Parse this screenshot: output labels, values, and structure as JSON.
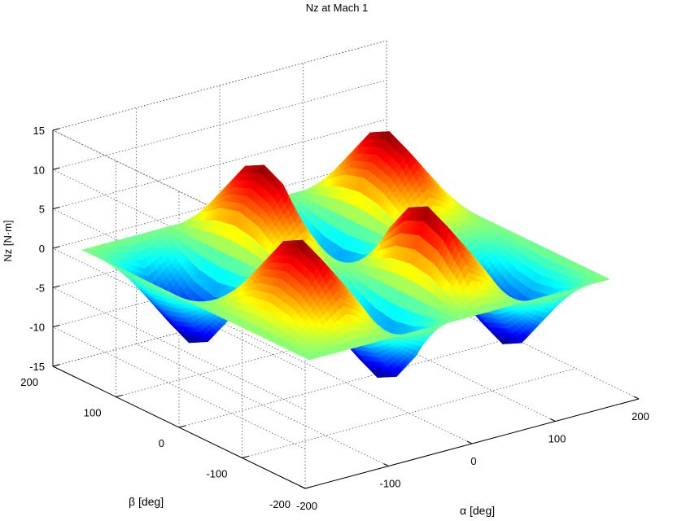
{
  "chart_data": {
    "type": "surface3d",
    "title": "Nz at Mach 1",
    "xlabel": "α [deg]",
    "ylabel": "β [deg]",
    "zlabel": "Nz [N·m]",
    "xlim": [
      -200,
      200
    ],
    "ylim": [
      -200,
      200
    ],
    "zlim": [
      -15,
      15
    ],
    "xticks": [
      "-200",
      "-100",
      "0",
      "100",
      "200"
    ],
    "yticks": [
      "-200",
      "-100",
      "0",
      "100",
      "200"
    ],
    "zticks": [
      "-15",
      "-10",
      "-5",
      "0",
      "5",
      "10",
      "15"
    ],
    "grid": true,
    "colormap": "jet",
    "x": [
      -180,
      -150,
      -120,
      -90,
      -60,
      -30,
      0,
      30,
      60,
      90,
      120,
      150,
      180
    ],
    "y": [
      -180,
      -150,
      -120,
      -90,
      -60,
      -30,
      0,
      30,
      60,
      90,
      120,
      150,
      180
    ],
    "z_rows_by_y": [
      [
        0,
        0,
        0,
        0,
        0,
        0,
        0,
        0,
        0,
        0,
        0,
        0,
        0
      ],
      [
        0,
        2.5,
        5,
        2.5,
        -2.5,
        -5,
        0,
        5,
        2.5,
        -2.5,
        -5,
        -2.5,
        0
      ],
      [
        0,
        4.3,
        8.7,
        4.3,
        -4.3,
        -8.7,
        0,
        8.7,
        4.3,
        -4.3,
        -8.7,
        -4.3,
        0
      ],
      [
        0,
        5,
        10,
        5,
        -5,
        -10,
        0,
        10,
        5,
        -5,
        -10,
        -5,
        0
      ],
      [
        0,
        4.3,
        8.7,
        4.3,
        -4.3,
        -8.7,
        0,
        8.7,
        4.3,
        -4.3,
        -8.7,
        -4.3,
        0
      ],
      [
        0,
        2.5,
        5,
        2.5,
        -2.5,
        -5,
        0,
        5,
        2.5,
        -2.5,
        -5,
        -2.5,
        0
      ],
      [
        0,
        0,
        0,
        0,
        0,
        0,
        0,
        0,
        0,
        0,
        0,
        0,
        0
      ],
      [
        0,
        -2.5,
        -5,
        -2.5,
        2.5,
        5,
        0,
        -5,
        -2.5,
        2.5,
        5,
        2.5,
        0
      ],
      [
        0,
        -4.3,
        -8.7,
        -4.3,
        4.3,
        8.7,
        0,
        -8.7,
        -4.3,
        4.3,
        8.7,
        4.3,
        0
      ],
      [
        0,
        -5,
        -10,
        -5,
        5,
        10,
        0,
        -10,
        -5,
        5,
        10,
        5,
        0
      ],
      [
        0,
        -4.3,
        -8.7,
        -4.3,
        4.3,
        8.7,
        0,
        -8.7,
        -4.3,
        4.3,
        8.7,
        4.3,
        0
      ],
      [
        0,
        -2.5,
        -5,
        -2.5,
        2.5,
        5,
        0,
        -5,
        -2.5,
        2.5,
        5,
        2.5,
        0
      ],
      [
        0,
        0,
        0,
        0,
        0,
        0,
        0,
        0,
        0,
        0,
        0,
        0,
        0
      ]
    ]
  }
}
